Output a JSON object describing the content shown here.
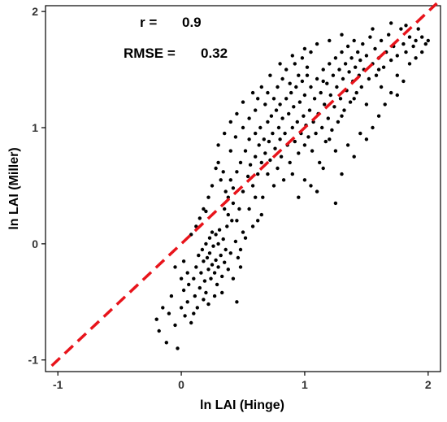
{
  "chart_data": {
    "type": "scatter",
    "title": "",
    "xlabel": "ln LAI (Hinge)",
    "ylabel": "ln LAI (Miller)",
    "xlim": [
      -1.1,
      2.1
    ],
    "ylim": [
      -1.1,
      2.05
    ],
    "x_ticks": [
      -1,
      0,
      1,
      2
    ],
    "x_tick_labels": [
      "-1",
      "0",
      "1",
      "2"
    ],
    "y_ticks": [
      -1,
      0,
      1,
      2
    ],
    "y_tick_labels": [
      "-1",
      "0",
      "1",
      "2"
    ],
    "grid": false,
    "annotations": {
      "r_label": "r =",
      "r_value": "0.9",
      "rmse_label": "RMSE =",
      "rmse_value": "0.32"
    },
    "reference_line": {
      "type": "1:1",
      "x": [
        -1.05,
        2.07
      ],
      "y": [
        -1.05,
        2.07
      ],
      "color": "#e8141b",
      "style": "dashed"
    },
    "point_color": "#000000",
    "points": [
      [
        -0.2,
        -0.65
      ],
      [
        -0.18,
        -0.75
      ],
      [
        -0.15,
        -0.55
      ],
      [
        -0.12,
        -0.85
      ],
      [
        -0.1,
        -0.6
      ],
      [
        -0.08,
        -0.45
      ],
      [
        -0.05,
        -0.7
      ],
      [
        -0.03,
        -0.9
      ],
      [
        0.0,
        -0.55
      ],
      [
        0.02,
        -0.4
      ],
      [
        0.03,
        -0.62
      ],
      [
        0.05,
        -0.5
      ],
      [
        0.06,
        -0.35
      ],
      [
        0.08,
        -0.68
      ],
      [
        0.1,
        -0.3
      ],
      [
        0.11,
        -0.45
      ],
      [
        0.12,
        -0.2
      ],
      [
        0.13,
        -0.55
      ],
      [
        0.14,
        -0.1
      ],
      [
        0.15,
        -0.38
      ],
      [
        0.16,
        -0.25
      ],
      [
        0.17,
        -0.05
      ],
      [
        0.18,
        -0.15
      ],
      [
        0.19,
        -0.32
      ],
      [
        0.2,
        0.0
      ],
      [
        0.2,
        -0.42
      ],
      [
        0.21,
        -0.12
      ],
      [
        0.22,
        -0.22
      ],
      [
        0.23,
        0.05
      ],
      [
        0.23,
        -0.08
      ],
      [
        0.24,
        -0.3
      ],
      [
        0.25,
        -0.18
      ],
      [
        0.25,
        0.1
      ],
      [
        0.26,
        -0.02
      ],
      [
        0.27,
        -0.25
      ],
      [
        0.28,
        0.08
      ],
      [
        0.28,
        -0.14
      ],
      [
        0.29,
        -0.35
      ],
      [
        0.3,
        0.0
      ],
      [
        0.3,
        -0.2
      ],
      [
        0.31,
        0.12
      ],
      [
        0.32,
        -0.1
      ],
      [
        0.33,
        -0.28
      ],
      [
        0.34,
        0.04
      ],
      [
        0.35,
        -0.16
      ],
      [
        0.36,
        -0.05
      ],
      [
        0.37,
        0.15
      ],
      [
        0.38,
        -0.22
      ],
      [
        0.4,
        -0.08
      ],
      [
        0.41,
        0.2
      ],
      [
        0.42,
        -0.3
      ],
      [
        0.44,
        0.02
      ],
      [
        0.45,
        -0.5
      ],
      [
        0.46,
        -0.12
      ],
      [
        0.47,
        0.3
      ],
      [
        0.48,
        -0.2
      ],
      [
        0.5,
        0.1
      ],
      [
        0.12,
        0.15
      ],
      [
        0.15,
        0.22
      ],
      [
        0.2,
        0.28
      ],
      [
        0.08,
        0.08
      ],
      [
        0.1,
        -0.6
      ],
      [
        0.18,
        -0.48
      ],
      [
        0.27,
        -0.45
      ],
      [
        0.33,
        -0.42
      ],
      [
        0.22,
        -0.52
      ],
      [
        0.05,
        -0.25
      ],
      [
        0.02,
        -0.15
      ],
      [
        0.0,
        -0.3
      ],
      [
        -0.05,
        -0.2
      ],
      [
        0.35,
        0.3
      ],
      [
        0.38,
        0.4
      ],
      [
        0.4,
        0.55
      ],
      [
        0.42,
        0.48
      ],
      [
        0.45,
        0.62
      ],
      [
        0.48,
        0.7
      ],
      [
        0.5,
        0.45
      ],
      [
        0.52,
        0.8
      ],
      [
        0.54,
        0.58
      ],
      [
        0.55,
        0.9
      ],
      [
        0.56,
        0.68
      ],
      [
        0.58,
        0.5
      ],
      [
        0.6,
        0.75
      ],
      [
        0.6,
        0.95
      ],
      [
        0.62,
        0.6
      ],
      [
        0.63,
        0.85
      ],
      [
        0.64,
        1.0
      ],
      [
        0.65,
        0.7
      ],
      [
        0.66,
        0.4
      ],
      [
        0.67,
        0.9
      ],
      [
        0.68,
        0.78
      ],
      [
        0.7,
        1.05
      ],
      [
        0.7,
        0.6
      ],
      [
        0.71,
        0.88
      ],
      [
        0.72,
        0.72
      ],
      [
        0.73,
        1.1
      ],
      [
        0.74,
        0.95
      ],
      [
        0.75,
        0.5
      ],
      [
        0.76,
        0.82
      ],
      [
        0.77,
        1.15
      ],
      [
        0.78,
        0.65
      ],
      [
        0.79,
        1.0
      ],
      [
        0.8,
        0.9
      ],
      [
        0.8,
        1.2
      ],
      [
        0.81,
        0.75
      ],
      [
        0.82,
        1.08
      ],
      [
        0.83,
        0.55
      ],
      [
        0.84,
        0.95
      ],
      [
        0.85,
        1.25
      ],
      [
        0.86,
        0.85
      ],
      [
        0.87,
        1.12
      ],
      [
        0.88,
        0.7
      ],
      [
        0.89,
        1.3
      ],
      [
        0.9,
        1.0
      ],
      [
        0.9,
        0.6
      ],
      [
        0.91,
        1.18
      ],
      [
        0.92,
        0.88
      ],
      [
        0.93,
        1.35
      ],
      [
        0.94,
        1.05
      ],
      [
        0.95,
        0.78
      ],
      [
        0.96,
        1.22
      ],
      [
        0.97,
        0.95
      ],
      [
        0.98,
        1.4
      ],
      [
        0.99,
        1.1
      ],
      [
        1.0,
        0.85
      ],
      [
        1.0,
        1.28
      ],
      [
        1.01,
        1.02
      ],
      [
        1.02,
        1.45
      ],
      [
        1.03,
        0.92
      ],
      [
        1.04,
        1.15
      ],
      [
        1.05,
        1.35
      ],
      [
        1.06,
        0.8
      ],
      [
        1.07,
        1.05
      ],
      [
        1.08,
        1.25
      ],
      [
        1.09,
        0.95
      ],
      [
        1.1,
        1.42
      ],
      [
        1.11,
        1.12
      ],
      [
        1.12,
        0.7
      ],
      [
        1.13,
        1.3
      ],
      [
        1.14,
        1.0
      ],
      [
        1.15,
        1.5
      ],
      [
        1.16,
        1.2
      ],
      [
        1.17,
        0.88
      ],
      [
        1.18,
        1.38
      ],
      [
        1.19,
        1.08
      ],
      [
        1.2,
        1.55
      ],
      [
        1.21,
        1.28
      ],
      [
        1.22,
        0.98
      ],
      [
        1.23,
        1.45
      ],
      [
        1.24,
        1.18
      ],
      [
        1.25,
        1.6
      ],
      [
        1.26,
        1.35
      ],
      [
        1.27,
        1.05
      ],
      [
        1.28,
        1.5
      ],
      [
        1.29,
        1.25
      ],
      [
        1.3,
        1.65
      ],
      [
        1.31,
        1.42
      ],
      [
        1.32,
        1.15
      ],
      [
        1.33,
        1.55
      ],
      [
        1.34,
        1.32
      ],
      [
        1.35,
        1.7
      ],
      [
        1.36,
        1.48
      ],
      [
        1.37,
        1.22
      ],
      [
        1.38,
        1.6
      ],
      [
        1.39,
        1.4
      ],
      [
        1.4,
        1.75
      ],
      [
        1.41,
        1.52
      ],
      [
        1.42,
        1.3
      ],
      [
        1.43,
        1.65
      ],
      [
        1.44,
        1.45
      ],
      [
        1.45,
        1.58
      ],
      [
        1.46,
        1.35
      ],
      [
        1.47,
        1.72
      ],
      [
        1.48,
        1.5
      ],
      [
        1.5,
        1.62
      ],
      [
        1.52,
        1.42
      ],
      [
        1.53,
        1.78
      ],
      [
        1.55,
        1.55
      ],
      [
        1.57,
        1.68
      ],
      [
        1.58,
        1.45
      ],
      [
        1.6,
        1.6
      ],
      [
        1.62,
        1.75
      ],
      [
        1.64,
        1.52
      ],
      [
        1.66,
        1.65
      ],
      [
        1.68,
        1.8
      ],
      [
        1.7,
        1.58
      ],
      [
        1.72,
        1.7
      ],
      [
        1.75,
        1.62
      ],
      [
        1.78,
        1.85
      ],
      [
        1.8,
        1.72
      ],
      [
        1.82,
        1.65
      ],
      [
        1.85,
        1.78
      ],
      [
        1.88,
        1.7
      ],
      [
        1.9,
        1.75
      ],
      [
        1.95,
        1.65
      ],
      [
        1.98,
        1.72
      ],
      [
        1.92,
        1.85
      ],
      [
        1.7,
        1.9
      ],
      [
        1.55,
        1.85
      ],
      [
        1.3,
        1.8
      ],
      [
        0.75,
        1.25
      ],
      [
        0.78,
        1.35
      ],
      [
        0.82,
        1.42
      ],
      [
        0.85,
        1.5
      ],
      [
        0.88,
        1.38
      ],
      [
        0.92,
        1.55
      ],
      [
        0.95,
        1.45
      ],
      [
        0.98,
        1.6
      ],
      [
        1.02,
        1.52
      ],
      [
        1.05,
        1.65
      ],
      [
        0.7,
        1.3
      ],
      [
        0.72,
        1.45
      ],
      [
        0.68,
        1.2
      ],
      [
        0.65,
        1.35
      ],
      [
        0.8,
        1.55
      ],
      [
        0.9,
        1.62
      ],
      [
        1.0,
        1.68
      ],
      [
        1.1,
        1.72
      ],
      [
        1.15,
        1.4
      ],
      [
        1.2,
        1.75
      ],
      [
        1.0,
        0.55
      ],
      [
        1.1,
        0.45
      ],
      [
        1.25,
        0.35
      ],
      [
        1.3,
        0.6
      ],
      [
        1.4,
        0.75
      ],
      [
        1.5,
        0.9
      ],
      [
        1.55,
        1.0
      ],
      [
        1.6,
        1.1
      ],
      [
        1.65,
        1.2
      ],
      [
        1.7,
        1.3
      ],
      [
        1.45,
        0.95
      ],
      [
        1.35,
        0.85
      ],
      [
        1.5,
        1.2
      ],
      [
        1.62,
        1.35
      ],
      [
        1.75,
        1.45
      ],
      [
        1.85,
        1.55
      ],
      [
        1.25,
        0.8
      ],
      [
        1.15,
        0.65
      ],
      [
        1.05,
        0.5
      ],
      [
        0.95,
        0.4
      ],
      [
        0.55,
        0.3
      ],
      [
        0.6,
        0.4
      ],
      [
        0.62,
        0.2
      ],
      [
        0.58,
        0.15
      ],
      [
        0.65,
        0.25
      ],
      [
        0.52,
        0.05
      ],
      [
        0.48,
        -0.05
      ],
      [
        0.45,
        0.2
      ],
      [
        0.42,
        0.35
      ],
      [
        0.38,
        0.25
      ],
      [
        0.36,
        0.45
      ],
      [
        0.32,
        0.55
      ],
      [
        0.3,
        0.7
      ],
      [
        0.34,
        0.62
      ],
      [
        0.4,
        0.8
      ],
      [
        0.44,
        0.92
      ],
      [
        0.5,
        1.0
      ],
      [
        0.55,
        1.08
      ],
      [
        0.6,
        1.15
      ],
      [
        0.62,
        1.25
      ],
      [
        0.25,
        0.5
      ],
      [
        0.28,
        0.65
      ],
      [
        0.3,
        0.85
      ],
      [
        0.35,
        0.95
      ],
      [
        0.4,
        1.05
      ],
      [
        0.22,
        0.4
      ],
      [
        0.18,
        0.3
      ],
      [
        0.45,
        1.12
      ],
      [
        0.5,
        1.22
      ],
      [
        0.58,
        1.3
      ],
      [
        1.75,
        1.28
      ],
      [
        1.8,
        1.4
      ],
      [
        1.9,
        1.6
      ],
      [
        1.95,
        1.78
      ],
      [
        2.0,
        1.75
      ],
      [
        1.82,
        1.88
      ],
      [
        1.6,
        1.5
      ],
      [
        1.4,
        1.25
      ],
      [
        1.3,
        1.1
      ],
      [
        1.2,
        0.9
      ]
    ]
  }
}
